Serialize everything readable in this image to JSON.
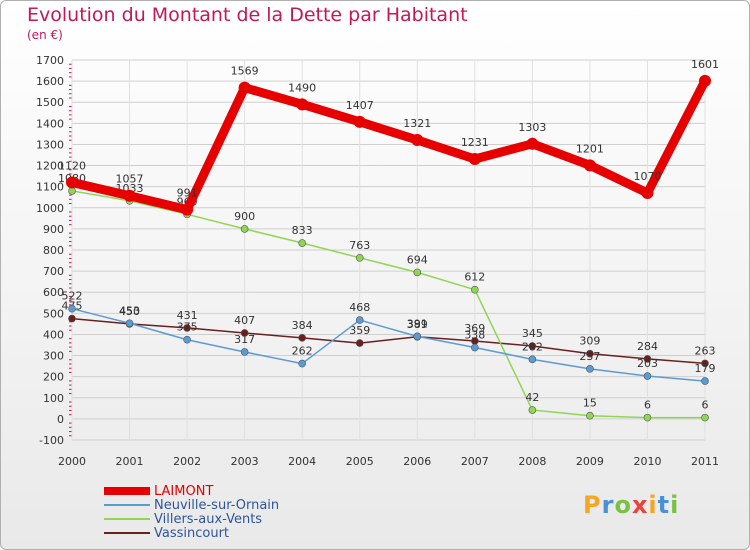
{
  "title": "Evolution du Montant de la Dette par Habitant",
  "unit": "(en €)",
  "logo": {
    "text": "Proxiti",
    "colors": [
      "#f5a623",
      "#4a90d9",
      "#7ac142",
      "#e8443a",
      "#f5a623",
      "#4a90d9",
      "#7ac142"
    ]
  },
  "chart_data": {
    "type": "line",
    "title": "Evolution du Montant de la Dette par Habitant",
    "subtitle": "(en €)",
    "x": [
      "2000",
      "2001",
      "2002",
      "2003",
      "2004",
      "2005",
      "2006",
      "2007",
      "2008",
      "2009",
      "2010",
      "2011"
    ],
    "ylim": [
      -100,
      1700
    ],
    "yticks": [
      -100,
      0,
      100,
      200,
      300,
      400,
      500,
      600,
      700,
      800,
      900,
      1000,
      1100,
      1200,
      1300,
      1400,
      1500,
      1600,
      1700
    ],
    "grid": true,
    "legend_position": "bottom-left",
    "series": [
      {
        "name": "LAIMONT",
        "color": "#e60000",
        "values": [
          1120,
          1057,
          991,
          1569,
          1490,
          1407,
          1321,
          1231,
          1303,
          1201,
          1070,
          1601
        ],
        "labels": [
          "1120",
          "1057",
          "991",
          "1569",
          "1490",
          "1407",
          "1321",
          "1231",
          "1303",
          "1201",
          "1070",
          "1601"
        ]
      },
      {
        "name": "Neuville-sur-Ornain",
        "color": "#5b9bd5",
        "values": [
          522,
          453,
          375,
          317,
          262,
          468,
          391,
          338,
          282,
          237,
          203,
          179
        ],
        "labels": [
          "522",
          "453",
          "375",
          "317",
          "262",
          "468",
          "391",
          "338",
          "282",
          "237",
          "203",
          "179"
        ]
      },
      {
        "name": "Villers-aux-Vents",
        "color": "#8ed654",
        "values": [
          1080,
          1033,
          969,
          900,
          833,
          763,
          694,
          612,
          42,
          15,
          6,
          6
        ],
        "labels": [
          "1080",
          "1033",
          "969",
          "900",
          "833",
          "763",
          "694",
          "612",
          "42",
          "15",
          "6",
          "6"
        ]
      },
      {
        "name": "Vassincourt",
        "color": "#6b1f1f",
        "values": [
          475,
          450,
          431,
          407,
          384,
          359,
          389,
          369,
          345,
          309,
          284,
          263
        ],
        "labels": [
          "475",
          "450",
          "431",
          "407",
          "384",
          "359",
          "389",
          "369",
          "345",
          "309",
          "284",
          "263"
        ]
      }
    ]
  }
}
